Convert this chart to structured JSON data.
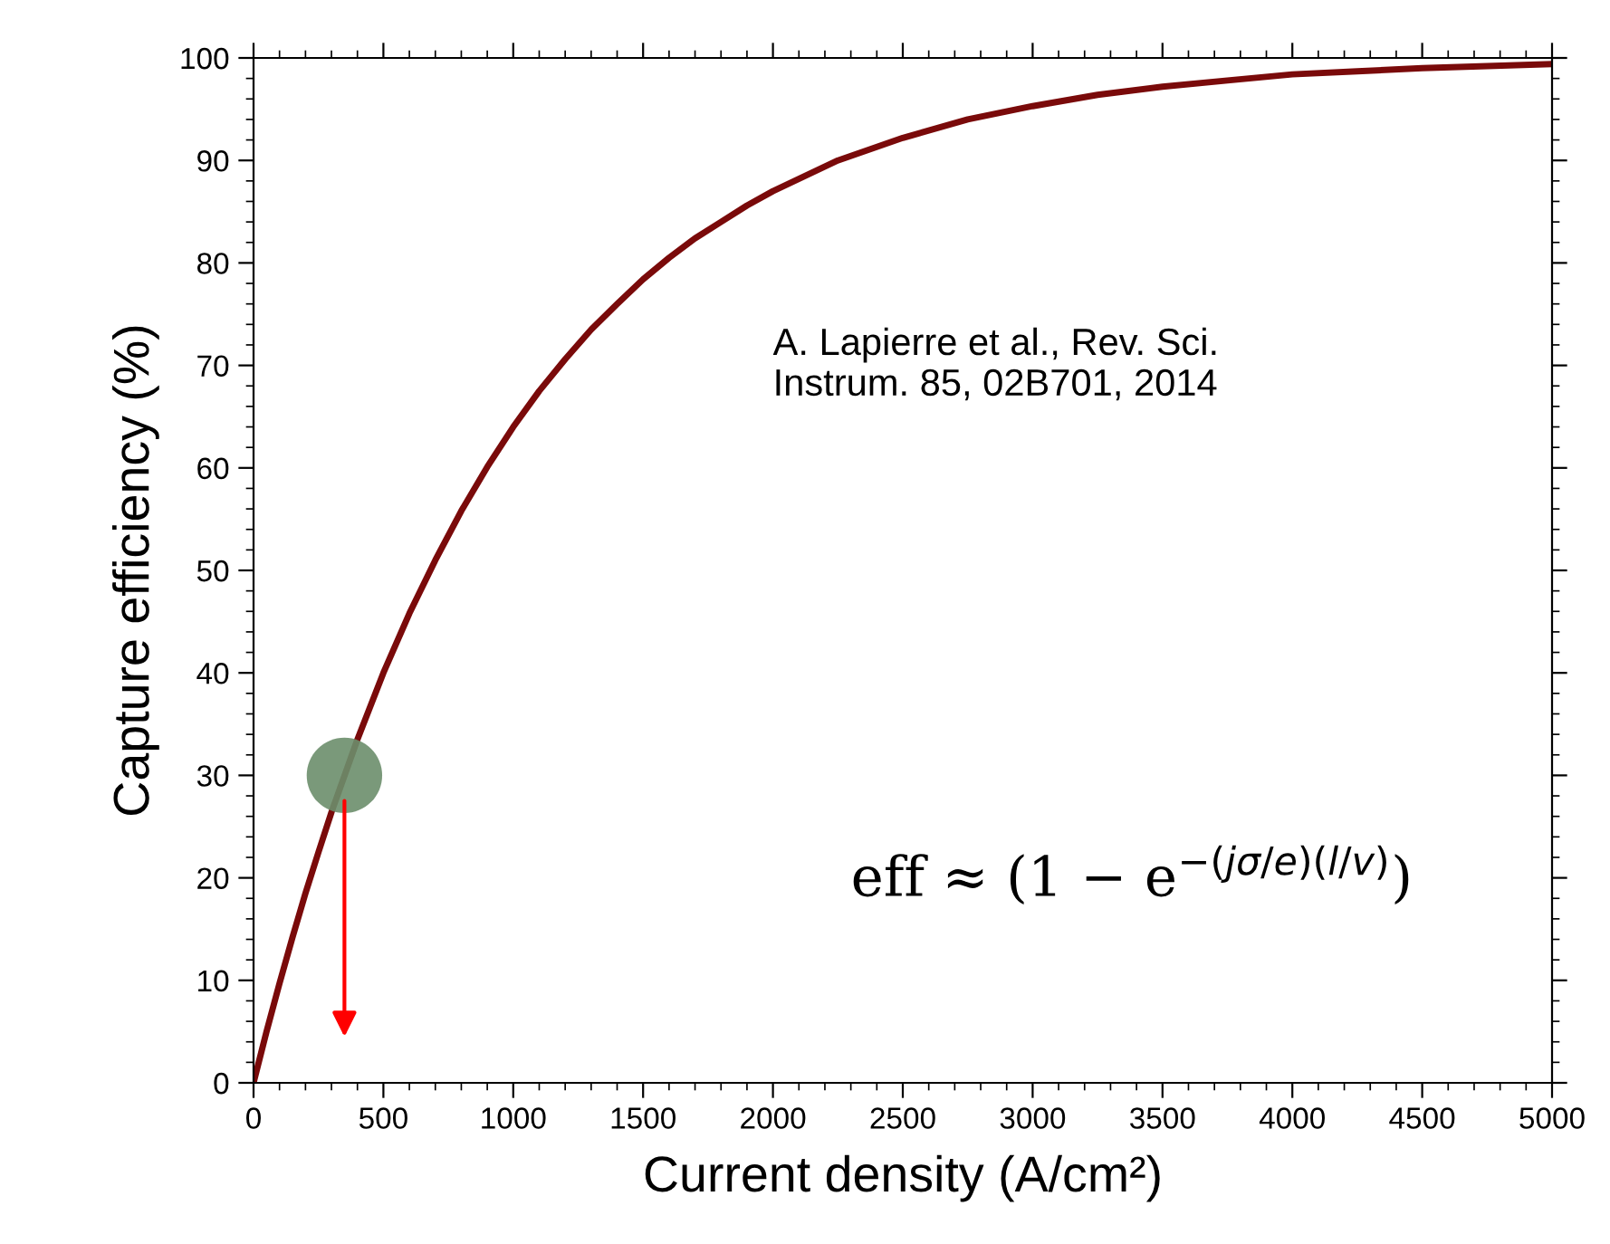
{
  "chart_data": {
    "type": "line",
    "xlabel": "Current density (A/cm²)",
    "ylabel": "Capture efficiency (%)",
    "x": [
      0,
      50,
      100,
      150,
      200,
      250,
      300,
      400,
      500,
      600,
      700,
      800,
      900,
      1000,
      1100,
      1200,
      1300,
      1400,
      1500,
      1600,
      1700,
      1800,
      1900,
      2000,
      2250,
      2500,
      2750,
      3000,
      3250,
      3500,
      3750,
      4000,
      4250,
      4500,
      4750,
      5000
    ],
    "series": [
      {
        "color": "#7a0a0a",
        "values": [
          0,
          5,
          9.7,
          14.2,
          18.5,
          22.5,
          26.4,
          33.5,
          40,
          45.8,
          51,
          55.8,
          60.1,
          64,
          67.5,
          70.6,
          73.5,
          76,
          78.4,
          80.5,
          82.4,
          84,
          85.6,
          87,
          90,
          92.2,
          94,
          95.3,
          96.4,
          97.2,
          97.8,
          98.4,
          98.7,
          99.0,
          99.2,
          99.4
        ]
      },
      {
        "type": "scatter",
        "color": "#6b8e6b",
        "x": [
          350
        ],
        "values": [
          30
        ]
      }
    ],
    "xlim": [
      0,
      5000
    ],
    "xticks": [
      0,
      500,
      1000,
      1500,
      2000,
      2500,
      3000,
      3500,
      4000,
      4500,
      5000
    ],
    "ylim": [
      0,
      100
    ],
    "yticks": [
      0,
      10,
      20,
      30,
      40,
      50,
      60,
      70,
      80,
      90,
      100
    ],
    "grid": false,
    "annotations": [
      "A. Lapierre et al., Rev. Sci.\nInstrum. 85, 02B701, 2014",
      "eff ≈ (1 − e$^{−(jσ/e)(l/v)}$)"
    ]
  }
}
